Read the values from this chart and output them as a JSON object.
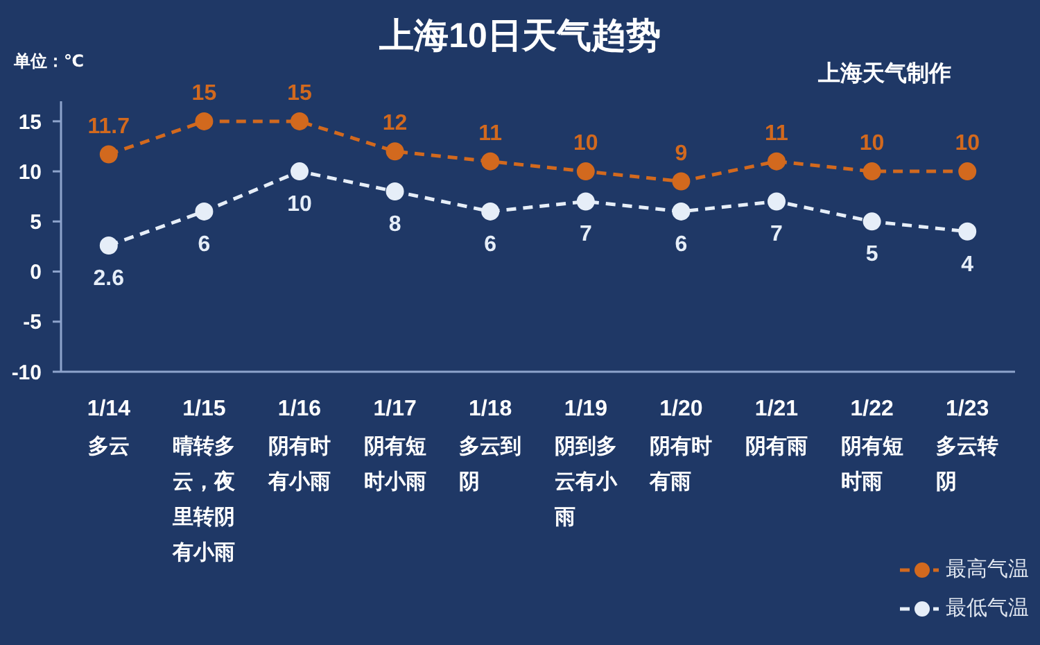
{
  "chart_data": {
    "type": "line",
    "title": "上海10日天气趋势",
    "ylabel": "单位：℃",
    "annotations": [
      "上海天气制作"
    ],
    "categories": [
      "1/14\n多云",
      "1/15\n晴转多云，夜里转阴有小雨",
      "1/16\n阴有时有小雨",
      "1/17\n阴有短时小雨",
      "1/18\n多云到阴",
      "1/19\n阴到多云有小雨",
      "1/20\n阴有时有雨",
      "1/21\n阴有雨",
      "1/22\n阴有短时雨",
      "1/23\n多云转阴"
    ],
    "series": [
      {
        "name": "最高气温",
        "color": "#d2691e",
        "values": [
          11.7,
          15,
          15,
          12,
          11,
          10,
          9,
          11,
          10,
          10
        ]
      },
      {
        "name": "最低气温",
        "color": "#e6eef8",
        "values": [
          2.6,
          6,
          10,
          8,
          6,
          7,
          6,
          7,
          5,
          4
        ]
      }
    ],
    "ylim": [
      -10,
      17
    ],
    "yticks": [
      -10,
      -5,
      0,
      5,
      10,
      15
    ],
    "grid": false,
    "legend": "bottom right",
    "marker": "circle",
    "line_style": "dashed",
    "data_labels": true
  }
}
